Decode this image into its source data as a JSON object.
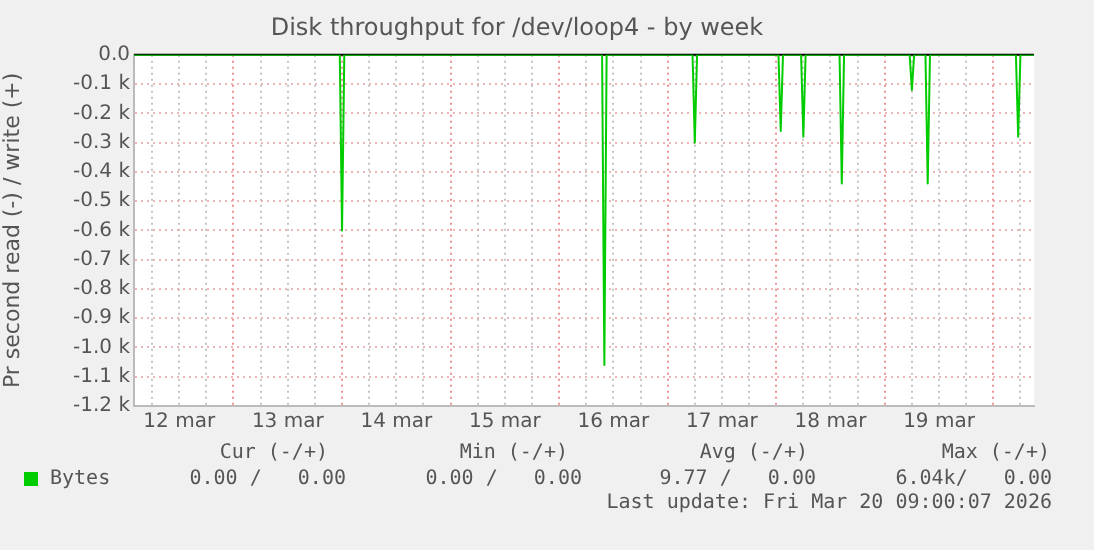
{
  "chart_data": {
    "type": "line",
    "title": "Disk throughput for /dev/loop4 - by week",
    "ylabel": "Pr second read (-) / write (+)",
    "xlim": [
      "2026-03-12T02:00",
      "2026-03-20T09:00"
    ],
    "xticks": [
      {
        "value": "2026-03-12T06:00",
        "label": null
      },
      {
        "value": "2026-03-12T12:00",
        "label": "12 mar"
      },
      {
        "value": "2026-03-12T18:00",
        "label": null
      },
      {
        "value": "2026-03-13T00:00",
        "label": null
      },
      {
        "value": "2026-03-13T06:00",
        "label": null
      },
      {
        "value": "2026-03-13T12:00",
        "label": "13 mar"
      },
      {
        "value": "2026-03-13T18:00",
        "label": null
      },
      {
        "value": "2026-03-14T00:00",
        "label": null
      },
      {
        "value": "2026-03-14T06:00",
        "label": null
      },
      {
        "value": "2026-03-14T12:00",
        "label": "14 mar"
      },
      {
        "value": "2026-03-14T18:00",
        "label": null
      },
      {
        "value": "2026-03-15T00:00",
        "label": null
      },
      {
        "value": "2026-03-15T06:00",
        "label": null
      },
      {
        "value": "2026-03-15T12:00",
        "label": "15 mar"
      },
      {
        "value": "2026-03-15T18:00",
        "label": null
      },
      {
        "value": "2026-03-16T00:00",
        "label": null
      },
      {
        "value": "2026-03-16T06:00",
        "label": null
      },
      {
        "value": "2026-03-16T12:00",
        "label": "16 mar"
      },
      {
        "value": "2026-03-16T18:00",
        "label": null
      },
      {
        "value": "2026-03-17T00:00",
        "label": null
      },
      {
        "value": "2026-03-17T06:00",
        "label": null
      },
      {
        "value": "2026-03-17T12:00",
        "label": "17 mar"
      },
      {
        "value": "2026-03-17T18:00",
        "label": null
      },
      {
        "value": "2026-03-18T00:00",
        "label": null
      },
      {
        "value": "2026-03-18T06:00",
        "label": null
      },
      {
        "value": "2026-03-18T12:00",
        "label": "18 mar"
      },
      {
        "value": "2026-03-18T18:00",
        "label": null
      },
      {
        "value": "2026-03-19T00:00",
        "label": null
      },
      {
        "value": "2026-03-19T06:00",
        "label": null
      },
      {
        "value": "2026-03-19T12:00",
        "label": "19 mar"
      },
      {
        "value": "2026-03-19T18:00",
        "label": null
      },
      {
        "value": "2026-03-20T00:00",
        "label": null
      },
      {
        "value": "2026-03-20T06:00",
        "label": null
      }
    ],
    "ylim": [
      -1200,
      0
    ],
    "yticks": [
      {
        "value": -1200,
        "label": "-1.2 k"
      },
      {
        "value": -1100,
        "label": "-1.1 k"
      },
      {
        "value": -1000,
        "label": "-1.0 k"
      },
      {
        "value": -900,
        "label": "-0.9 k"
      },
      {
        "value": -800,
        "label": "-0.8 k"
      },
      {
        "value": -700,
        "label": "-0.7 k"
      },
      {
        "value": -600,
        "label": "-0.6 k"
      },
      {
        "value": -500,
        "label": "-0.5 k"
      },
      {
        "value": -400,
        "label": "-0.4 k"
      },
      {
        "value": -300,
        "label": "-0.3 k"
      },
      {
        "value": -200,
        "label": "-0.2 k"
      },
      {
        "value": -100,
        "label": "-0.1 k"
      },
      {
        "value": 0,
        "label": "0.0"
      }
    ],
    "grid": true,
    "legend": "bottom left",
    "marker": "none",
    "series": [
      {
        "name": "Bytes",
        "color": "#00cc00",
        "x": [
          "2026-03-12T02:00",
          "2026-03-13T23:30",
          "2026-03-14T00:00",
          "2026-03-14T00:30",
          "2026-03-16T09:30",
          "2026-03-16T10:00",
          "2026-03-16T10:30",
          "2026-03-17T05:30",
          "2026-03-17T06:00",
          "2026-03-17T06:30",
          "2026-03-18T00:30",
          "2026-03-18T01:00",
          "2026-03-18T01:30",
          "2026-03-18T05:30",
          "2026-03-18T06:00",
          "2026-03-18T06:30",
          "2026-03-18T14:00",
          "2026-03-18T14:30",
          "2026-03-18T15:00",
          "2026-03-19T05:30",
          "2026-03-19T06:00",
          "2026-03-19T06:30",
          "2026-03-19T09:00",
          "2026-03-19T09:30",
          "2026-03-19T10:00",
          "2026-03-20T05:00",
          "2026-03-20T05:30",
          "2026-03-20T06:00",
          "2026-03-20T09:00"
        ],
        "values": [
          0,
          0,
          -600,
          0,
          0,
          -1060,
          0,
          0,
          -300,
          0,
          0,
          -260,
          0,
          0,
          -280,
          0,
          0,
          -440,
          0,
          0,
          -120,
          0,
          0,
          -440,
          0,
          0,
          -280,
          0,
          0
        ]
      }
    ],
    "annotations": [
      "Cur (-/+)",
      "Min (-/+)",
      "Avg (-/+)",
      "Max (-/+)",
      "0.00 /   0.00",
      "0.00 /   0.00",
      "9.77 /   0.00",
      "6.04k/   0.00",
      "Last update: Fri Mar 20 09:00:07 2026"
    ]
  }
}
